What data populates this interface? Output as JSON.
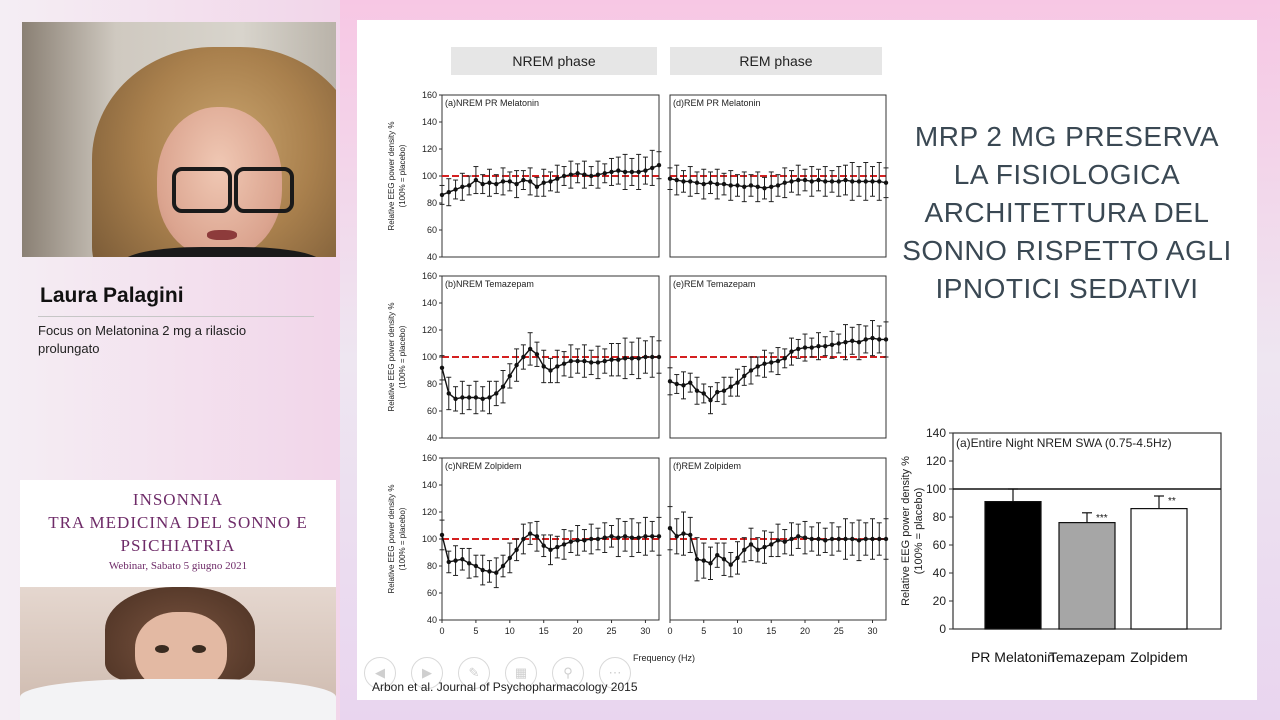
{
  "speaker": {
    "name": "Laura Palagini",
    "topic": "Focus on Melatonina 2 mg a rilascio prolungato"
  },
  "event": {
    "title_line1": "INSONNIA",
    "title_line2": "TRA MEDICINA DEL SONNO E",
    "title_line3": "PSICHIATRIA",
    "subtitle": "Webinar, Sabato 5 giugno 2021"
  },
  "slide": {
    "phase_tabs": [
      "NREM phase",
      "REM phase"
    ],
    "heading_lines": [
      "MRP 2 MG PRESERVA",
      "LA FISIOLOGICA",
      "ARCHITETTURA DEL",
      "SONNO RISPETTO AGLI",
      "IPNOTICI SEDATIVI"
    ],
    "citation": "Arbon et al. Journal of Psychopharmacology 2015",
    "nav_controls": [
      "prev-icon",
      "next-icon",
      "pen-icon",
      "grid-icon",
      "zoom-icon",
      "more-icon"
    ]
  },
  "chart_data": [
    {
      "type": "line",
      "panel": "(a)NREM PR Melatonin",
      "x": [
        0,
        1,
        2,
        3,
        4,
        5,
        6,
        7,
        8,
        9,
        10,
        11,
        12,
        13,
        14,
        15,
        16,
        17,
        18,
        19,
        20,
        21,
        22,
        23,
        24,
        25,
        26,
        27,
        28,
        29,
        30,
        31,
        32
      ],
      "values": [
        86,
        88,
        90,
        92,
        93,
        97,
        94,
        95,
        94,
        96,
        96,
        94,
        97,
        96,
        92,
        95,
        96,
        98,
        100,
        101,
        102,
        101,
        100,
        101,
        102,
        103,
        104,
        103,
        103,
        103,
        104,
        106,
        108
      ],
      "reference": 100,
      "ylabel": "Relative EEG power density %\n(100% = placebo)",
      "ylim": [
        40,
        160
      ],
      "yticks": [
        40,
        60,
        80,
        100,
        120,
        140,
        160
      ],
      "xlim": [
        0,
        32
      ],
      "xticks": [
        0,
        5,
        10,
        15,
        20,
        25,
        30
      ]
    },
    {
      "type": "line",
      "panel": "(d)REM PR Melatonin",
      "x": [
        0,
        1,
        2,
        3,
        4,
        5,
        6,
        7,
        8,
        9,
        10,
        11,
        12,
        13,
        14,
        15,
        16,
        17,
        18,
        19,
        20,
        21,
        22,
        23,
        24,
        25,
        26,
        27,
        28,
        29,
        30,
        31,
        32
      ],
      "values": [
        98,
        97,
        96,
        96,
        95,
        94,
        95,
        94,
        94,
        93,
        93,
        92,
        93,
        92,
        91,
        92,
        93,
        95,
        96,
        97,
        97,
        96,
        97,
        96,
        96,
        96,
        97,
        96,
        96,
        96,
        96,
        96,
        95
      ],
      "reference": 100,
      "ylim": [
        40,
        160
      ],
      "xlim": [
        0,
        32
      ]
    },
    {
      "type": "line",
      "panel": "(b)NREM Temazepam",
      "x": [
        0,
        1,
        2,
        3,
        4,
        5,
        6,
        7,
        8,
        9,
        10,
        11,
        12,
        13,
        14,
        15,
        16,
        17,
        18,
        19,
        20,
        21,
        22,
        23,
        24,
        25,
        26,
        27,
        28,
        29,
        30,
        31,
        32
      ],
      "values": [
        92,
        73,
        69,
        70,
        70,
        70,
        69,
        70,
        73,
        78,
        86,
        94,
        100,
        106,
        102,
        93,
        90,
        93,
        95,
        97,
        97,
        97,
        96,
        96,
        97,
        98,
        98,
        99,
        99,
        99,
        100,
        100,
        100
      ],
      "reference": 100,
      "ylabel": "Relative EEG power density %\n(100% = placebo)",
      "ylim": [
        40,
        160
      ],
      "yticks": [
        40,
        60,
        80,
        100,
        120,
        140,
        160
      ],
      "xlim": [
        0,
        32
      ]
    },
    {
      "type": "line",
      "panel": "(e)REM Temazepam",
      "x": [
        0,
        1,
        2,
        3,
        4,
        5,
        6,
        7,
        8,
        9,
        10,
        11,
        12,
        13,
        14,
        15,
        16,
        17,
        18,
        19,
        20,
        21,
        22,
        23,
        24,
        25,
        26,
        27,
        28,
        29,
        30,
        31,
        32
      ],
      "values": [
        82,
        80,
        79,
        81,
        75,
        73,
        68,
        74,
        75,
        78,
        81,
        86,
        90,
        93,
        95,
        96,
        97,
        99,
        104,
        106,
        107,
        107,
        108,
        108,
        109,
        110,
        111,
        112,
        111,
        113,
        114,
        113,
        113
      ],
      "reference": 100,
      "ylim": [
        40,
        160
      ],
      "xlim": [
        0,
        32
      ]
    },
    {
      "type": "line",
      "panel": "(c)NREM Zolpidem",
      "x": [
        0,
        1,
        2,
        3,
        4,
        5,
        6,
        7,
        8,
        9,
        10,
        11,
        12,
        13,
        14,
        15,
        16,
        17,
        18,
        19,
        20,
        21,
        22,
        23,
        24,
        25,
        26,
        27,
        28,
        29,
        30,
        31,
        32
      ],
      "values": [
        103,
        83,
        84,
        85,
        82,
        80,
        77,
        76,
        75,
        80,
        86,
        92,
        100,
        104,
        102,
        95,
        92,
        94,
        96,
        98,
        99,
        99,
        100,
        100,
        101,
        102,
        101,
        102,
        101,
        101,
        102,
        102,
        102
      ],
      "reference": 100,
      "ylabel": "Relative EEG power density %\n(100% = placebo)",
      "ylim": [
        40,
        160
      ],
      "yticks": [
        40,
        60,
        80,
        100,
        120,
        140,
        160
      ],
      "xlim": [
        0,
        32
      ],
      "xticks": [
        0,
        5,
        10,
        15,
        20,
        25,
        30
      ],
      "xlabel": "Frequency (Hz)"
    },
    {
      "type": "line",
      "panel": "(f)REM Zolpidem",
      "x": [
        0,
        1,
        2,
        3,
        4,
        5,
        6,
        7,
        8,
        9,
        10,
        11,
        12,
        13,
        14,
        15,
        16,
        17,
        18,
        19,
        20,
        21,
        22,
        23,
        24,
        25,
        26,
        27,
        28,
        29,
        30,
        31,
        32
      ],
      "values": [
        108,
        102,
        104,
        103,
        85,
        84,
        82,
        88,
        85,
        81,
        86,
        92,
        96,
        92,
        94,
        96,
        99,
        98,
        100,
        102,
        101,
        100,
        100,
        99,
        100,
        100,
        100,
        100,
        99,
        100,
        100,
        100,
        100
      ],
      "reference": 100,
      "ylim": [
        40,
        160
      ],
      "xlim": [
        0,
        32
      ],
      "xticks": [
        0,
        5,
        10,
        15,
        20,
        25,
        30
      ]
    },
    {
      "type": "bar",
      "panel": "(a)Entire Night NREM SWA (0.75-4.5Hz)",
      "categories": [
        "PR Melatonin",
        "Temazepam",
        "Zolpidem"
      ],
      "values": [
        91,
        76,
        86
      ],
      "errors": [
        9,
        7,
        9
      ],
      "significance": [
        "",
        "***",
        "**"
      ],
      "colors": [
        "#000000",
        "#a6a6a6",
        "#ffffff"
      ],
      "reference": 100,
      "ylabel": "Relative EEG power density %\n(100% = placebo)",
      "ylim": [
        0,
        140
      ],
      "yticks": [
        0,
        20,
        40,
        60,
        80,
        100,
        120,
        140
      ]
    }
  ]
}
